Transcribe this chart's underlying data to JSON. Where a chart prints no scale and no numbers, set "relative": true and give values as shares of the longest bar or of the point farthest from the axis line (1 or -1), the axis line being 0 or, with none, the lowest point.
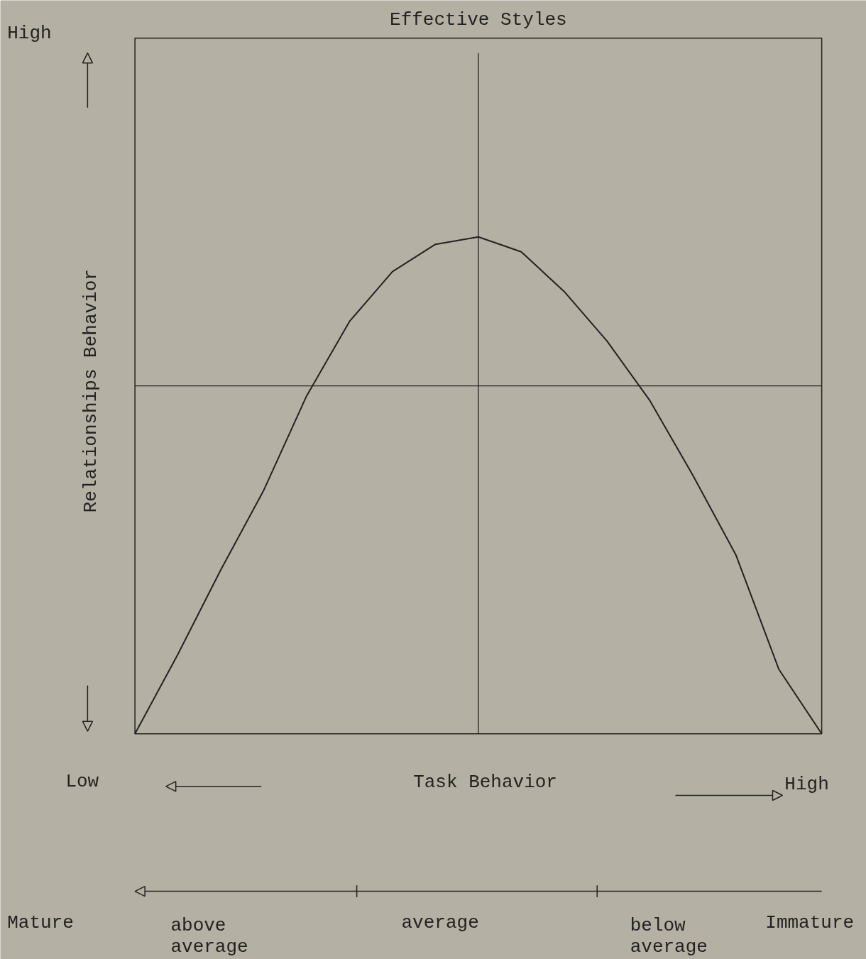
{
  "chart_data": {
    "type": "line",
    "relative": true,
    "title": "Effective Styles",
    "xlabel": "Task Behavior",
    "ylabel": "Relationships Behavior",
    "categories": [
      null,
      null,
      null,
      null,
      null,
      null,
      null,
      null,
      null,
      null,
      null,
      null,
      null,
      null,
      null,
      null,
      null
    ],
    "series": [
      {
        "color": "#222222",
        "values": [
          0,
          0.16,
          0.33,
          0.49,
          0.68,
          0.83,
          0.93,
          0.985,
          1,
          0.97,
          0.89,
          0.79,
          0.67,
          0.52,
          0.36,
          0.13,
          0
        ]
      }
    ],
    "ref_lines": [
      {
        "axis": "y",
        "value": 0.7,
        "color": "#222222"
      }
    ],
    "annotations": [
      "High",
      "Low",
      "High",
      "Mature",
      "above\naverage",
      "average",
      "below\naverage",
      "Immature"
    ],
    "grid": false,
    "marker": "none",
    "line_style": "solid"
  }
}
